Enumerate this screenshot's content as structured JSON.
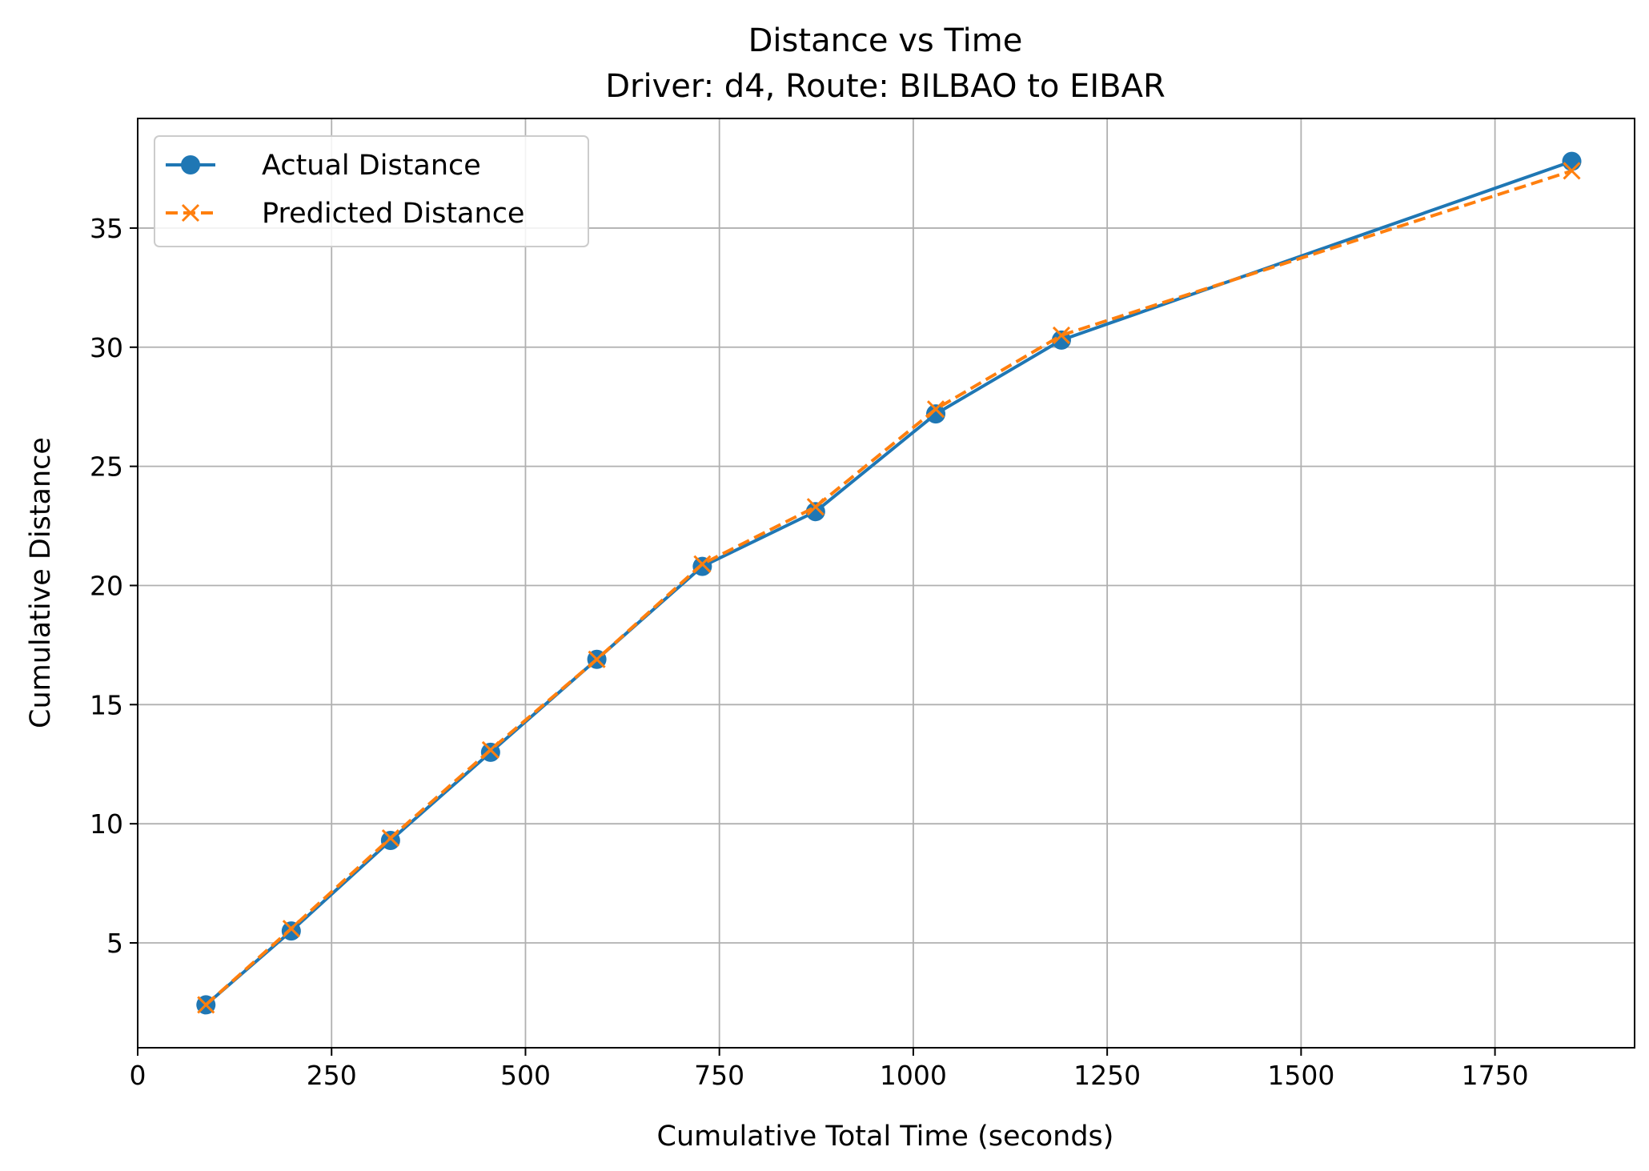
{
  "chart_data": {
    "type": "line",
    "title": "Distance vs Time",
    "subtitle": "Driver: d4, Route: BILBAO to EIBAR",
    "xlabel": "Cumulative Total Time (seconds)",
    "ylabel": "Cumulative Distance",
    "xlim": [
      0,
      1930
    ],
    "ylim": [
      0.6,
      39.6
    ],
    "xticks": [
      0,
      250,
      500,
      750,
      1000,
      1250,
      1500,
      1750
    ],
    "yticks": [
      5,
      10,
      15,
      20,
      25,
      30,
      35
    ],
    "grid": true,
    "legend_position": "top-left",
    "series": [
      {
        "name": "Actual Distance",
        "color": "#1f77b4",
        "marker": "circle",
        "linestyle": "solid",
        "x": [
          88,
          198,
          326,
          455,
          592,
          728,
          874,
          1029,
          1191,
          1849
        ],
        "y": [
          2.4,
          5.5,
          9.3,
          13.0,
          16.9,
          20.8,
          23.1,
          27.2,
          30.3,
          37.8
        ]
      },
      {
        "name": "Predicted Distance",
        "color": "#ff7f0e",
        "marker": "x",
        "linestyle": "dashed",
        "x": [
          88,
          198,
          326,
          455,
          592,
          728,
          874,
          1029,
          1191,
          1849
        ],
        "y": [
          2.4,
          5.6,
          9.4,
          13.1,
          16.9,
          20.9,
          23.3,
          27.4,
          30.5,
          37.4
        ]
      }
    ]
  }
}
